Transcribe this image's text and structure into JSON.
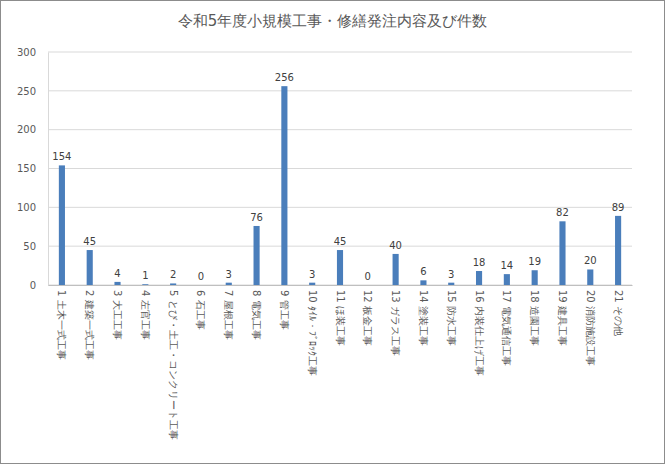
{
  "chart_data": {
    "type": "bar",
    "title": "令和5年度小規模工事・修繕発注内容及び件数",
    "categories": [
      "1 土木一式工事",
      "2 建築一式工事",
      "3 大工工事",
      "4 左官工事",
      "5 とび・土工・コンクリート工事",
      "6 石工事",
      "7 屋根工事",
      "8 電気工事",
      "9 管工事",
      "10 ﾀｲﾙ・ﾌﾞﾛｯｸ工事",
      "11 ほ装工事",
      "12 板金工事",
      "13 ガラス工事",
      "14 塗装工事",
      "15 防水工事",
      "16 内装仕上げ工事",
      "17 電気通信工事",
      "18 造園工事",
      "19 建具工事",
      "20 消防施設工事",
      "21 その他"
    ],
    "values": [
      154,
      45,
      4,
      1,
      2,
      0,
      3,
      76,
      256,
      3,
      45,
      0,
      40,
      6,
      3,
      18,
      14,
      19,
      82,
      20,
      89
    ],
    "color": "#4a7ebb",
    "ylim": [
      0,
      300
    ],
    "yticks": [
      0,
      50,
      100,
      150,
      200,
      250,
      300
    ],
    "grid": true,
    "data_labels": true
  }
}
